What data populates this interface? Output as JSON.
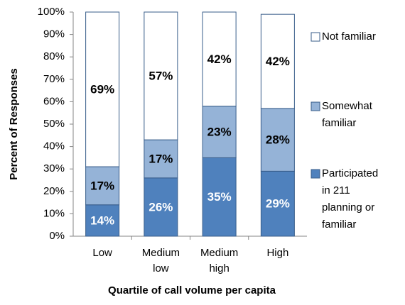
{
  "chart_data": {
    "type": "bar",
    "stacked": true,
    "x_label": "Quartile of call volume per capita",
    "y_label": "Percent of Responses",
    "categories": [
      "Low",
      "Medium low",
      "Medium high",
      "High"
    ],
    "series": [
      {
        "name": "Participated in 211 planning or familiar",
        "color": "#4f81bd",
        "label_color": "#ffffff",
        "values": [
          14,
          26,
          35,
          29
        ],
        "value_labels": [
          "14%",
          "26%",
          "35%",
          "29%"
        ]
      },
      {
        "name": "Somewhat familiar",
        "color": "#95b3d7",
        "label_color": "#000000",
        "values": [
          17,
          17,
          23,
          28
        ],
        "value_labels": [
          "17%",
          "17%",
          "23%",
          "28%"
        ]
      },
      {
        "name": "Not familiar",
        "color": "#ffffff",
        "label_color": "#000000",
        "values": [
          69,
          57,
          42,
          42
        ],
        "value_labels": [
          "69%",
          "57%",
          "42%",
          "42%"
        ]
      }
    ],
    "ylim": [
      0,
      100
    ],
    "yticks": [
      {
        "value": 0,
        "label": "0%"
      },
      {
        "value": 10,
        "label": "10%"
      },
      {
        "value": 20,
        "label": "20%"
      },
      {
        "value": 30,
        "label": "30%"
      },
      {
        "value": 40,
        "label": "40%"
      },
      {
        "value": 50,
        "label": "50%"
      },
      {
        "value": 60,
        "label": "60%"
      },
      {
        "value": 70,
        "label": "70%"
      },
      {
        "value": 80,
        "label": "80%"
      },
      {
        "value": 90,
        "label": "90%"
      },
      {
        "value": 100,
        "label": "100%"
      }
    ],
    "legend": "right"
  }
}
